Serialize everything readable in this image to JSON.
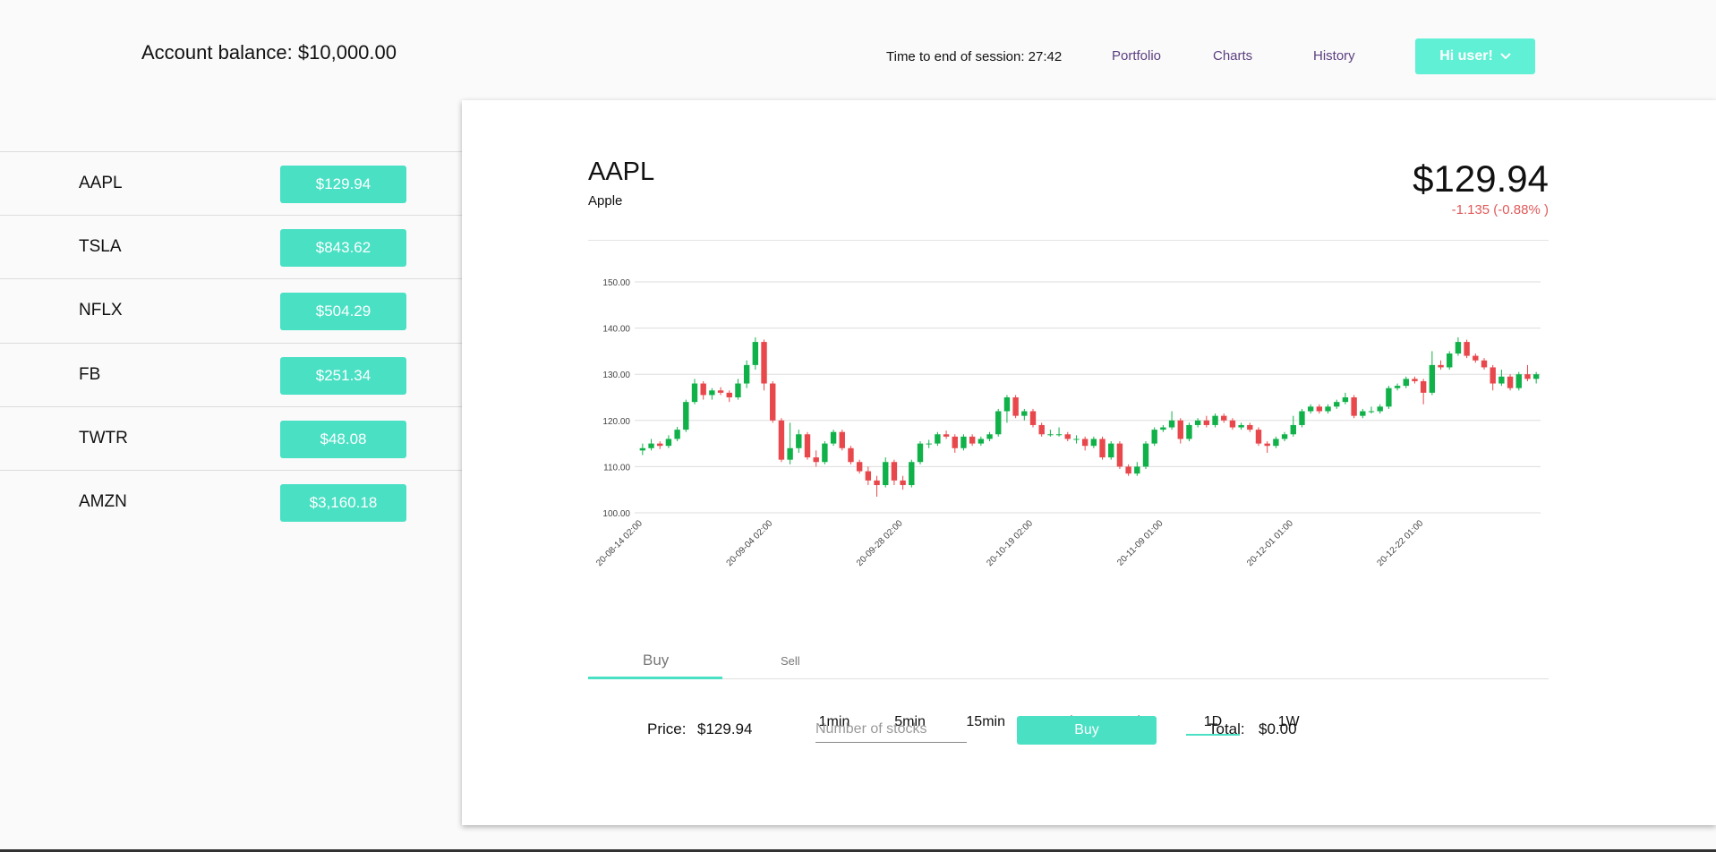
{
  "header": {
    "balance": "Account balance: $10,000.00",
    "session": "Time to end of session: 27:42",
    "nav": [
      "Portfolio",
      "Charts",
      "History"
    ],
    "user": "Hi user!"
  },
  "stocks": [
    {
      "ticker": "AAPL",
      "price": "$129.94"
    },
    {
      "ticker": "TSLA",
      "price": "$843.62"
    },
    {
      "ticker": "NFLX",
      "price": "$504.29"
    },
    {
      "ticker": "FB",
      "price": "$251.34"
    },
    {
      "ticker": "TWTR",
      "price": "$48.08"
    },
    {
      "ticker": "AMZN",
      "price": "$3,160.18"
    }
  ],
  "detail": {
    "symbol": "AAPL",
    "name": "Apple",
    "price": "$129.94",
    "change": "-1.135 (-0.88% )"
  },
  "intervals": {
    "options": [
      "1min",
      "5min",
      "15min",
      "30min",
      "1h",
      "1D",
      "1W"
    ],
    "active": "1D"
  },
  "tabs": [
    "Buy",
    "Sell"
  ],
  "order": {
    "price_label": "Price:",
    "price": "$129.94",
    "placeholder": "Number of stocks",
    "button": "Buy",
    "total_label": "Total:",
    "total": "$0.00"
  },
  "chart_data": {
    "type": "candlestick",
    "up_color": "#11b14a",
    "down_color": "#e8474b",
    "grid": true,
    "ylim": [
      100,
      150
    ],
    "yticks": [
      {
        "value": 100,
        "label": "100.00"
      },
      {
        "value": 110,
        "label": "110.00"
      },
      {
        "value": 120,
        "label": "120.00"
      },
      {
        "value": 130,
        "label": "130.00"
      },
      {
        "value": 140,
        "label": "140.00"
      },
      {
        "value": 150,
        "label": "150.00"
      }
    ],
    "categories": [
      "20-08-14 02:00",
      null,
      null,
      null,
      null,
      null,
      null,
      null,
      null,
      null,
      null,
      null,
      null,
      null,
      null,
      "20-09-04 02:00",
      null,
      null,
      null,
      null,
      null,
      null,
      null,
      null,
      null,
      null,
      null,
      null,
      null,
      null,
      "20-09-28 02:00",
      null,
      null,
      null,
      null,
      null,
      null,
      null,
      null,
      null,
      null,
      null,
      null,
      null,
      null,
      "20-10-19 02:00",
      null,
      null,
      null,
      null,
      null,
      null,
      null,
      null,
      null,
      null,
      null,
      null,
      null,
      null,
      "20-11-09 01:00",
      null,
      null,
      null,
      null,
      null,
      null,
      null,
      null,
      null,
      null,
      null,
      null,
      null,
      null,
      "20-12-01 01:00",
      null,
      null,
      null,
      null,
      null,
      null,
      null,
      null,
      null,
      null,
      null,
      null,
      null,
      null,
      "20-12-22 01:00",
      null,
      null,
      null,
      null,
      null,
      null,
      null,
      null,
      null,
      null,
      null,
      null,
      null
    ],
    "open": [
      113.5,
      114,
      115,
      114.5,
      116,
      118,
      124,
      128,
      125.5,
      126.5,
      126,
      125,
      128,
      132,
      137,
      128,
      120,
      111.5,
      114,
      117,
      112,
      111,
      115,
      117.5,
      114,
      111,
      109,
      107,
      106,
      111,
      107,
      106,
      111,
      115,
      115,
      117,
      116.5,
      114,
      116.5,
      115,
      116,
      117,
      122,
      125,
      121,
      122,
      119,
      117,
      117,
      117,
      116,
      116,
      114.5,
      116,
      112,
      115,
      110,
      108.5,
      110,
      115,
      118,
      118.5,
      120,
      116,
      119,
      120,
      119,
      121,
      120,
      118.5,
      119,
      118,
      115,
      114.5,
      116,
      117,
      119,
      122,
      123,
      122,
      123,
      124,
      125,
      121,
      122,
      122,
      123,
      127,
      127.5,
      129,
      128.5,
      126,
      132,
      131.5,
      134.5,
      137,
      134,
      133,
      131.5,
      128,
      129.5,
      127,
      130,
      129
    ],
    "high": [
      115,
      116,
      115.5,
      116.8,
      118.6,
      124.5,
      129,
      128.5,
      127,
      127.2,
      126.5,
      129,
      133,
      138,
      137.5,
      128.5,
      120.5,
      119.5,
      118,
      117.5,
      113.5,
      115.5,
      118,
      118,
      114.5,
      111.5,
      110,
      108,
      112,
      111.5,
      108,
      111.5,
      115.5,
      115.8,
      117.5,
      117.8,
      117,
      117,
      117,
      116.5,
      117.5,
      122.5,
      125.5,
      125.5,
      122.5,
      122.5,
      119.5,
      118,
      118.5,
      117.5,
      116.8,
      116.5,
      116.5,
      116.5,
      115.5,
      115.5,
      110.5,
      111,
      115.5,
      118.5,
      119,
      122,
      120.5,
      119.5,
      120.5,
      121,
      121.5,
      121.5,
      120.5,
      119.5,
      119.5,
      118.5,
      115.5,
      116.5,
      117.5,
      121,
      122.5,
      123.5,
      123.5,
      123.5,
      124.5,
      126,
      125.5,
      122.5,
      123,
      123.5,
      127.5,
      128,
      129.5,
      129.5,
      129,
      135,
      133,
      135,
      138,
      137.5,
      134.5,
      133.5,
      132,
      131,
      130,
      130.5,
      132,
      130.5
    ],
    "low": [
      112.5,
      113.5,
      113.8,
      114,
      115.5,
      117.5,
      123.5,
      124.5,
      124.5,
      125.5,
      124,
      124.5,
      127,
      131,
      126.5,
      119.5,
      111,
      110.5,
      113,
      111.5,
      110,
      110.5,
      114.5,
      113.5,
      110.5,
      108.5,
      106,
      103.5,
      105.5,
      106,
      105,
      105.5,
      110.5,
      114,
      114.5,
      116,
      113,
      113.5,
      114.5,
      114.5,
      115.5,
      116.5,
      119.5,
      120.5,
      120,
      118.5,
      116.5,
      116.5,
      116.5,
      115.5,
      115,
      113.5,
      114,
      111.5,
      111.5,
      109.5,
      108,
      108,
      109.5,
      114.5,
      117.5,
      118,
      115,
      115.5,
      118.5,
      118.5,
      118.5,
      119.5,
      118,
      118,
      117.5,
      114.5,
      113,
      114,
      115.5,
      116.5,
      118.5,
      121.5,
      121.5,
      121.5,
      122.5,
      123.5,
      120.5,
      120.5,
      121.5,
      121.5,
      122.5,
      126.5,
      127,
      128,
      123.5,
      125.5,
      131,
      131,
      134,
      133.5,
      132.5,
      131,
      126.5,
      127.5,
      126.5,
      126.5,
      128.5,
      128
    ],
    "close": [
      114,
      115,
      114.5,
      116,
      118,
      124,
      128,
      125.5,
      126.5,
      126,
      125,
      128,
      132,
      137,
      128,
      120,
      111.5,
      114,
      117,
      112,
      111,
      115,
      117.5,
      114,
      111,
      109,
      107,
      106,
      111,
      107,
      106,
      111,
      115,
      115,
      117,
      116.5,
      114,
      116.5,
      115,
      116,
      117,
      122,
      125,
      121,
      122,
      119,
      117,
      117,
      117,
      116,
      116,
      114.5,
      116,
      112,
      115,
      110,
      108.5,
      110,
      115,
      118,
      118.5,
      120,
      116,
      119,
      120,
      119,
      121,
      120,
      118.5,
      119,
      118,
      115,
      114.5,
      116,
      117,
      119,
      122,
      123,
      122,
      123,
      124,
      125,
      121,
      122,
      122,
      123,
      127,
      127.5,
      129,
      128.5,
      126,
      132,
      131.5,
      134.5,
      137,
      134,
      133,
      131.5,
      128,
      129.5,
      127,
      130,
      129,
      130
    ]
  }
}
